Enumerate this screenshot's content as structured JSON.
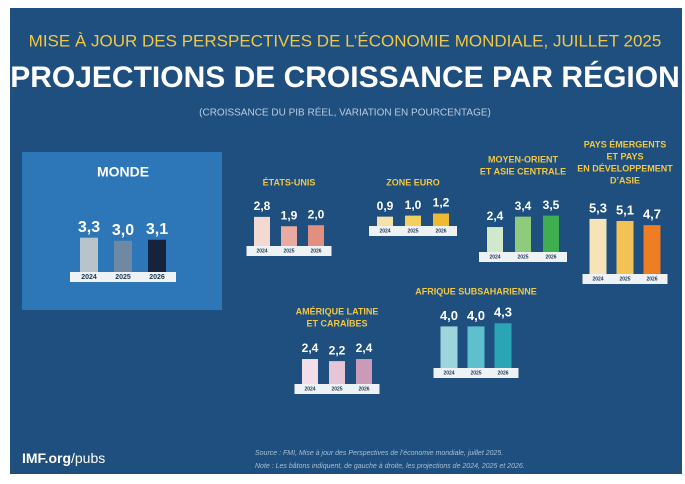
{
  "header": {
    "kicker": "MISE À JOUR DES PERSPECTIVES DE L’ÉCONOMIE MONDIALE, JUILLET 2025",
    "title": "PROJECTIONS DE CROISSANCE PAR RÉGION",
    "subtitle": "(CROISSANCE DU PIB RÉEL, VARIATION EN POURCENTAGE)"
  },
  "chart_data": [
    {
      "type": "bar",
      "title": [
        "MONDE"
      ],
      "categories": [
        "2024",
        "2025",
        "2026"
      ],
      "values": [
        3.3,
        3.0,
        3.1
      ],
      "value_labels": [
        "3,3",
        "3,0",
        "3,1"
      ],
      "colors": [
        "#b9c3cb",
        "#6f88a3",
        "#17223d"
      ]
    },
    {
      "type": "bar",
      "title": [
        "ÉTATS-UNIS"
      ],
      "categories": [
        "2024",
        "2025",
        "2026"
      ],
      "values": [
        2.8,
        1.9,
        2.0
      ],
      "value_labels": [
        "2,8",
        "1,9",
        "2,0"
      ],
      "colors": [
        "#f3d9d2",
        "#e9aaa0",
        "#e38f80"
      ]
    },
    {
      "type": "bar",
      "title": [
        "ZONE EURO"
      ],
      "categories": [
        "2024",
        "2025",
        "2026"
      ],
      "values": [
        0.9,
        1.0,
        1.2
      ],
      "value_labels": [
        "0,9",
        "1,0",
        "1,2"
      ],
      "colors": [
        "#f6e2a6",
        "#f2cf5e",
        "#eebb30"
      ]
    },
    {
      "type": "bar",
      "title": [
        "MOYEN-ORIENT",
        "ET ASIE CENTRALE"
      ],
      "categories": [
        "2024",
        "2025",
        "2026"
      ],
      "values": [
        2.4,
        3.4,
        3.5
      ],
      "value_labels": [
        "2,4",
        "3,4",
        "3,5"
      ],
      "colors": [
        "#d2e8cb",
        "#8fcb7d",
        "#3fae4f"
      ]
    },
    {
      "type": "bar",
      "title": [
        "PAYS ÉMERGENTS",
        "ET PAYS",
        "EN DÉVELOPPEMENT",
        "D’ASIE"
      ],
      "categories": [
        "2024",
        "2025",
        "2026"
      ],
      "values": [
        5.3,
        5.1,
        4.7
      ],
      "value_labels": [
        "5,3",
        "5,1",
        "4,7"
      ],
      "colors": [
        "#f7e3b8",
        "#f3c257",
        "#ee7d24"
      ]
    },
    {
      "type": "bar",
      "title": [
        "AMÉRIQUE LATINE",
        "ET CARAÏBES"
      ],
      "categories": [
        "2024",
        "2025",
        "2026"
      ],
      "values": [
        2.4,
        2.2,
        2.4
      ],
      "value_labels": [
        "2,4",
        "2,2",
        "2,4"
      ],
      "colors": [
        "#f2dde8",
        "#e6c5d6",
        "#c99bb9"
      ]
    },
    {
      "type": "bar",
      "title": [
        "AFRIQUE SUBSAHARIENNE"
      ],
      "categories": [
        "2024",
        "2025",
        "2026"
      ],
      "values": [
        4.0,
        4.0,
        4.3
      ],
      "value_labels": [
        "4,0",
        "4,0",
        "4,3"
      ],
      "colors": [
        "#9dd5dd",
        "#5dc0cc",
        "#2aa5b5"
      ]
    }
  ],
  "footer": {
    "brand": "IMF.org",
    "brand_path": "/pubs",
    "source": "Source : FMI, Mise à jour des Perspectives de l’économie mondiale, juillet 2025.",
    "note": "Note : Les bâtons indiquent, de gauche à droite, les projections de 2024, 2025 et 2026."
  }
}
